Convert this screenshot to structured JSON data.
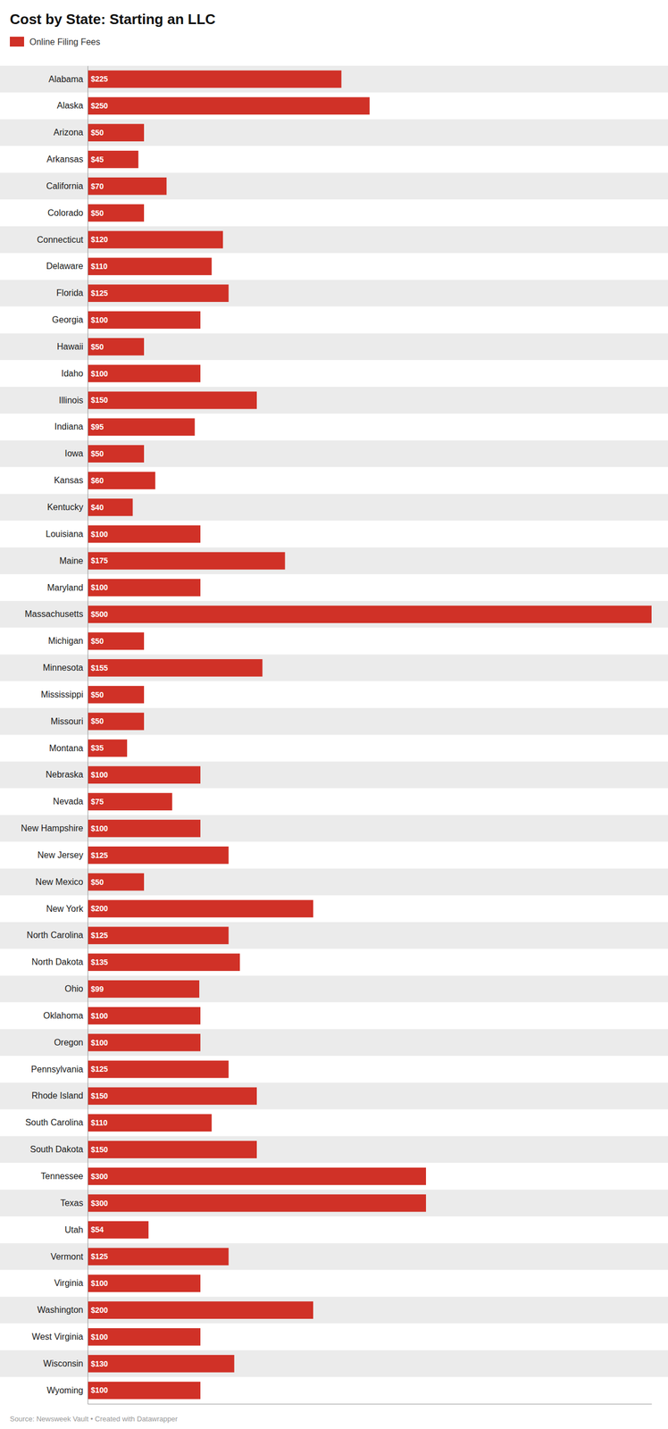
{
  "chart_data": {
    "type": "bar",
    "orientation": "horizontal",
    "title": "Cost by State: Starting an LLC",
    "categories": [
      "Alabama",
      "Alaska",
      "Arizona",
      "Arkansas",
      "California",
      "Colorado",
      "Connecticut",
      "Delaware",
      "Florida",
      "Georgia",
      "Hawaii",
      "Idaho",
      "Illinois",
      "Indiana",
      "Iowa",
      "Kansas",
      "Kentucky",
      "Louisiana",
      "Maine",
      "Maryland",
      "Massachusetts",
      "Michigan",
      "Minnesota",
      "Mississippi",
      "Missouri",
      "Montana",
      "Nebraska",
      "Nevada",
      "New Hampshire",
      "New Jersey",
      "New Mexico",
      "New York",
      "North Carolina",
      "North Dakota",
      "Ohio",
      "Oklahoma",
      "Oregon",
      "Pennsylvania",
      "Rhode Island",
      "South Carolina",
      "South Dakota",
      "Tennessee",
      "Texas",
      "Utah",
      "Vermont",
      "Virginia",
      "Washington",
      "West Virginia",
      "Wisconsin",
      "Wyoming"
    ],
    "series": [
      {
        "name": "Online Filing Fees",
        "color": "#d03127",
        "values": [
          225,
          250,
          50,
          45,
          70,
          50,
          120,
          110,
          125,
          100,
          50,
          100,
          150,
          95,
          50,
          60,
          40,
          100,
          175,
          100,
          500,
          50,
          155,
          50,
          50,
          35,
          100,
          75,
          100,
          125,
          50,
          200,
          125,
          135,
          99,
          100,
          100,
          125,
          150,
          110,
          150,
          300,
          300,
          54,
          125,
          100,
          200,
          100,
          130,
          100
        ],
        "value_labels": [
          "$225",
          "$250",
          "$50",
          "$45",
          "$70",
          "$50",
          "$120",
          "$110",
          "$125",
          "$100",
          "$50",
          "$100",
          "$150",
          "$95",
          "$50",
          "$60",
          "$40",
          "$100",
          "$175",
          "$100",
          "$500",
          "$50",
          "$155",
          "$50",
          "$50",
          "$35",
          "$100",
          "$75",
          "$100",
          "$125",
          "$50",
          "$200",
          "$125",
          "$135",
          "$99",
          "$100",
          "$100",
          "$125",
          "$150",
          "$110",
          "$150",
          "$300",
          "$300",
          "$54",
          "$125",
          "$100",
          "$200",
          "$100",
          "$130",
          "$100"
        ]
      }
    ],
    "xlim": [
      0,
      500
    ],
    "data_labels": true,
    "tick_labels": "y",
    "grid": false,
    "legend": "top-left",
    "annotations": [
      "Source: Newsweek Vault • Created with Datawrapper"
    ]
  }
}
